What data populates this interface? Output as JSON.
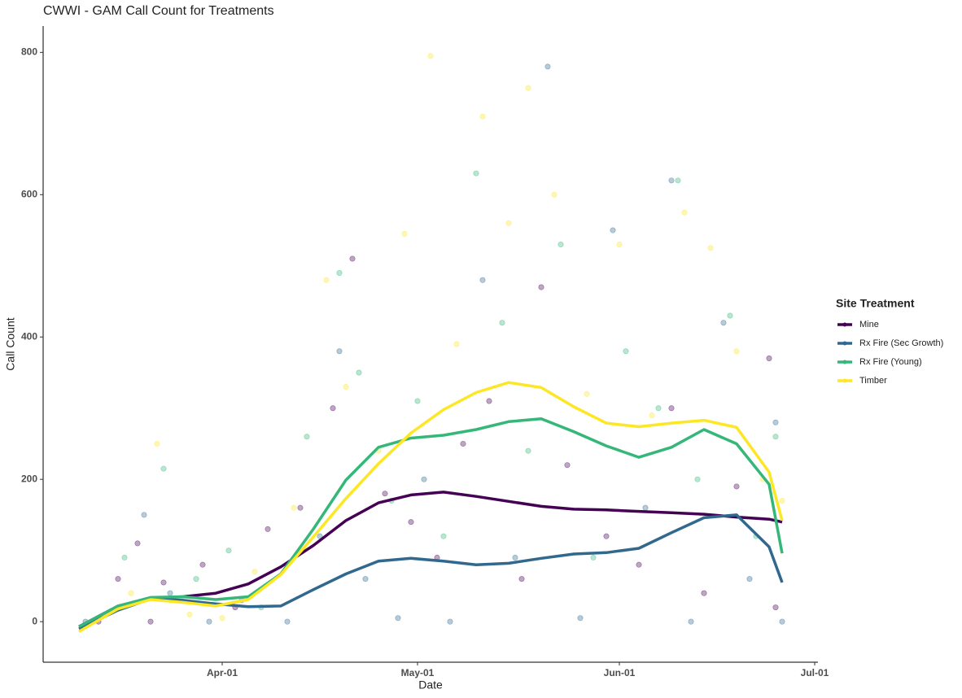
{
  "chart_data": {
    "type": "scatter",
    "title": "CWWI - GAM Call Count for Treatments",
    "x_label": "Date",
    "y_label": "Call Count",
    "legend_title": "Site Treatment",
    "legend": "right",
    "grid": false,
    "xlim": [
      63.5,
      182.5
    ],
    "xticks": [
      {
        "value": 91,
        "label": "Apr-01"
      },
      {
        "value": 121,
        "label": "May-01"
      },
      {
        "value": 152,
        "label": "Jun-01"
      },
      {
        "value": 182,
        "label": "Jul-01"
      }
    ],
    "ylim": [
      -57,
      837
    ],
    "yticks": [
      0,
      200,
      400,
      600,
      800
    ],
    "fit_x": [
      69,
      75,
      80,
      85,
      90,
      95,
      100,
      105,
      110,
      115,
      120,
      125,
      130,
      135,
      140,
      145,
      150,
      155,
      160,
      165,
      170,
      175,
      177
    ],
    "series": [
      {
        "name": "Mine",
        "color": "#440154",
        "x": [
          72,
          75,
          78,
          80,
          82,
          88,
          93,
          98,
          103,
          108,
          111,
          116,
          120,
          124,
          128,
          132,
          137,
          140,
          144,
          150,
          155,
          160,
          165,
          170,
          175,
          176
        ],
        "values": [
          0,
          60,
          110,
          0,
          55,
          80,
          20,
          130,
          160,
          300,
          510,
          180,
          140,
          90,
          250,
          310,
          60,
          470,
          220,
          120,
          80,
          300,
          40,
          190,
          370,
          20
        ],
        "fit_values": [
          -7,
          22,
          33,
          35,
          40,
          53,
          77,
          107,
          142,
          167,
          178,
          182,
          176,
          169,
          162,
          158,
          157,
          155,
          153,
          151,
          147,
          144,
          140
        ]
      },
      {
        "name": "Rx Fire (Sec Growth)",
        "color": "#31688e",
        "x": [
          70,
          74,
          79,
          83,
          89,
          94,
          101,
          106,
          109,
          113,
          118,
          122,
          126,
          131,
          136,
          141,
          146,
          151,
          156,
          160,
          163,
          168,
          172,
          176,
          177
        ],
        "values": [
          0,
          15,
          150,
          40,
          0,
          30,
          0,
          120,
          380,
          60,
          5,
          200,
          0,
          480,
          90,
          780,
          5,
          550,
          160,
          620,
          0,
          420,
          60,
          280,
          0
        ],
        "fit_values": [
          -10,
          16,
          32,
          30,
          25,
          21,
          22,
          45,
          67,
          85,
          89,
          85,
          80,
          82,
          89,
          95,
          97,
          103,
          125,
          146,
          150,
          105,
          55
        ]
      },
      {
        "name": "Rx Fire (Young)",
        "color": "#35b779",
        "x": [
          72,
          76,
          82,
          87,
          92,
          97,
          104,
          109,
          112,
          117,
          121,
          125,
          130,
          134,
          138,
          143,
          148,
          153,
          158,
          161,
          164,
          169,
          173,
          176
        ],
        "values": [
          5,
          90,
          215,
          60,
          100,
          20,
          260,
          490,
          350,
          170,
          310,
          120,
          630,
          420,
          240,
          530,
          90,
          380,
          300,
          620,
          200,
          430,
          120,
          260
        ],
        "fit_values": [
          -7,
          22,
          34,
          35,
          31,
          35,
          67,
          130,
          199,
          245,
          258,
          262,
          270,
          281,
          285,
          267,
          247,
          231,
          245,
          270,
          250,
          193,
          96
        ]
      },
      {
        "name": "Timber",
        "color": "#fde725",
        "x": [
          71,
          77,
          81,
          86,
          91,
          96,
          102,
          107,
          110,
          115,
          119,
          123,
          127,
          131,
          135,
          138,
          142,
          147,
          152,
          157,
          162,
          166,
          170,
          174,
          177
        ],
        "values": [
          0,
          40,
          250,
          10,
          5,
          70,
          160,
          480,
          330,
          240,
          545,
          795,
          390,
          710,
          560,
          750,
          600,
          320,
          530,
          290,
          575,
          525,
          380,
          200,
          170
        ],
        "fit_values": [
          -14,
          18,
          31,
          27,
          22,
          31,
          66,
          119,
          173,
          222,
          265,
          298,
          322,
          336,
          329,
          302,
          279,
          274,
          279,
          283,
          273,
          210,
          142
        ]
      }
    ]
  }
}
